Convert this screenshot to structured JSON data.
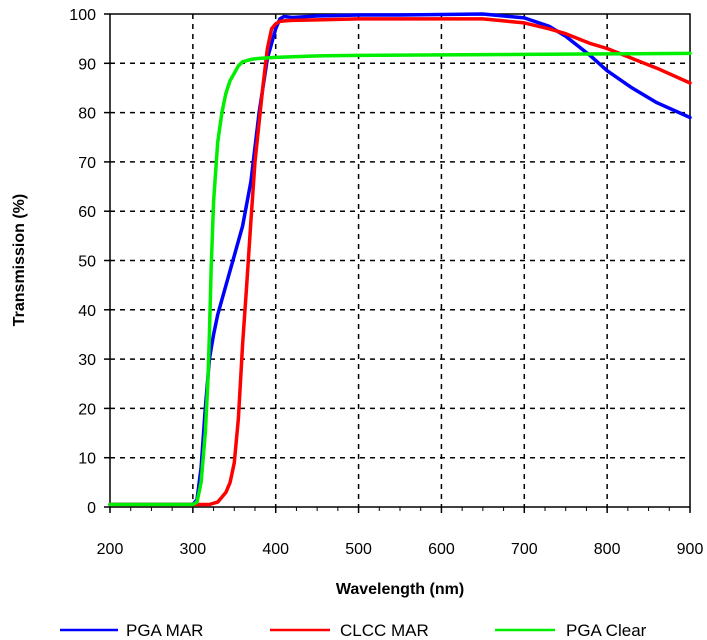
{
  "chart_data": {
    "type": "line",
    "title": "",
    "xlabel": "Wavelength (nm)",
    "ylabel": "Transmission (%)",
    "xlim": [
      200,
      900
    ],
    "ylim": [
      0,
      100
    ],
    "x_ticks": [
      200,
      300,
      400,
      500,
      600,
      700,
      800,
      900
    ],
    "y_ticks": [
      0,
      10,
      20,
      30,
      40,
      50,
      60,
      70,
      80,
      90,
      100
    ],
    "grid": true,
    "legend_position": "bottom",
    "series": [
      {
        "name": "PGA MAR",
        "color": "#0000ff",
        "x": [
          200,
          300,
          305,
          310,
          315,
          320,
          325,
          330,
          340,
          350,
          360,
          370,
          380,
          390,
          400,
          405,
          410,
          420,
          450,
          500,
          550,
          600,
          650,
          700,
          730,
          750,
          780,
          800,
          830,
          860,
          900
        ],
        "y": [
          0.5,
          0.5,
          1.5,
          8,
          20,
          30,
          35,
          39,
          45,
          51,
          57,
          66,
          80,
          91,
          97,
          99,
          99.5,
          99.3,
          99.6,
          99.8,
          99.8,
          99.9,
          100,
          99.2,
          97.5,
          95.5,
          91.5,
          88.5,
          85,
          82,
          79
        ]
      },
      {
        "name": "CLCC MAR",
        "color": "#ff0000",
        "x": [
          200,
          310,
          320,
          330,
          340,
          345,
          350,
          355,
          360,
          365,
          370,
          375,
          380,
          385,
          390,
          395,
          400,
          405,
          410,
          420,
          450,
          500,
          550,
          600,
          650,
          700,
          730,
          750,
          780,
          800,
          830,
          860,
          900
        ],
        "y": [
          0.5,
          0.5,
          0.5,
          1,
          3,
          5,
          9,
          18,
          33,
          45,
          58,
          70,
          78,
          86,
          93,
          97,
          98,
          98.5,
          98.6,
          98.7,
          98.8,
          99,
          99,
          99,
          99,
          98.2,
          97,
          96,
          94,
          93,
          91,
          89,
          86
        ]
      },
      {
        "name": "PGA Clear",
        "color": "#00ee00",
        "x": [
          200,
          300,
          305,
          310,
          315,
          318,
          320,
          322,
          325,
          330,
          335,
          340,
          345,
          350,
          355,
          360,
          370,
          380,
          400,
          450,
          500,
          600,
          700,
          800,
          900
        ],
        "y": [
          0.5,
          0.5,
          1,
          5,
          15,
          25,
          35,
          48,
          62,
          74,
          80,
          84,
          86.5,
          88,
          89.5,
          90.3,
          90.8,
          91,
          91.2,
          91.5,
          91.6,
          91.7,
          91.8,
          91.9,
          92
        ]
      }
    ]
  }
}
